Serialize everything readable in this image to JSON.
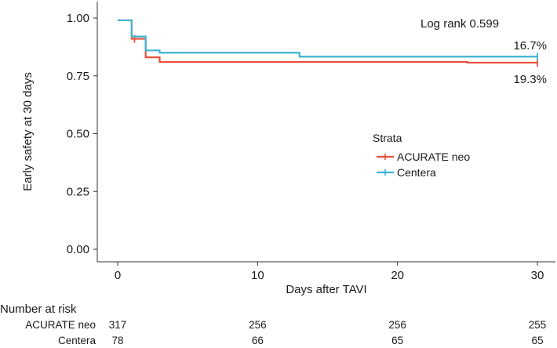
{
  "chart_data": {
    "type": "line",
    "subtype": "kaplan-meier-step",
    "title": "",
    "xlabel": "Days after TAVI",
    "ylabel": "Early safety at 30 days",
    "xlim": [
      0,
      30
    ],
    "ylim": [
      0.0,
      1.0
    ],
    "xticks": [
      0,
      10,
      20,
      30
    ],
    "yticks": [
      0.0,
      0.25,
      0.5,
      0.75,
      1.0
    ],
    "ytick_labels": [
      "0.00",
      "0.25",
      "0.50",
      "0.75",
      "1.00"
    ],
    "grid": false,
    "legend": {
      "title": "Strata",
      "placement": "center-right"
    },
    "annotations": {
      "log_rank": "Log rank 0.599",
      "centera_end_label": "16.7%",
      "acurate_end_label": "19.3%"
    },
    "series": [
      {
        "name": "ACURATE neo",
        "color": "#e8503a",
        "x": [
          0,
          1,
          2,
          3,
          25,
          30
        ],
        "y": [
          0.99,
          0.91,
          0.83,
          0.81,
          0.807,
          0.807
        ],
        "censor_x": [
          1.2,
          30
        ]
      },
      {
        "name": "Centera",
        "color": "#3fb4d2",
        "x": [
          0,
          1,
          2,
          3,
          13,
          30
        ],
        "y": [
          0.99,
          0.92,
          0.86,
          0.85,
          0.833,
          0.833
        ],
        "censor_x": [
          30
        ]
      }
    ],
    "risk_table": {
      "title": "Number at risk",
      "times": [
        0,
        10,
        20,
        30
      ],
      "rows": [
        {
          "label": "ACURATE neo",
          "counts": [
            "317",
            "256",
            "256",
            "255"
          ]
        },
        {
          "label": "Centera",
          "counts": [
            "78",
            "66",
            "65",
            "65"
          ]
        }
      ]
    }
  }
}
